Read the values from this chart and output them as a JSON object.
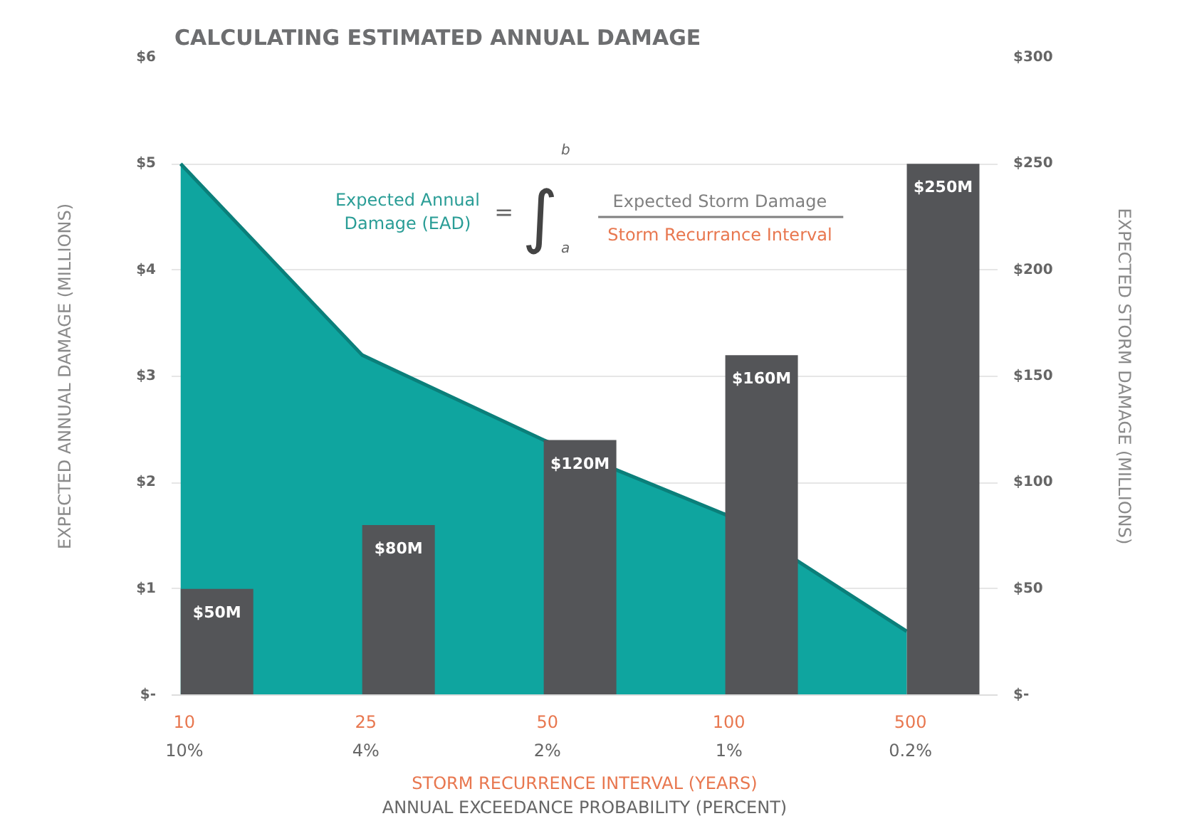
{
  "chart_data": {
    "type": "bar",
    "title": "CALCULATING ESTIMATED ANNUAL DAMAGE",
    "xlabel": "STORM RECURRENCE INTERVAL (YEARS)\nANNUAL EXCEEDANCE PROBABILITY (PERCENT)",
    "ylabel": "EXPECTED ANNUAL DAMAGE (MILLIONS)",
    "y2label": "EXPECTED STORM DAMAGE (MILLIONS)",
    "categories": [
      "10\n10%",
      "25\n4%",
      "50\n2%",
      "100\n1%",
      "500\n0.2%"
    ],
    "series": [
      {
        "type": "area",
        "color": "#0fa59f",
        "values": [
          5,
          3.2,
          2.4,
          1.7,
          0.6
        ]
      },
      {
        "axis": "y2",
        "color": "#545558",
        "values": [
          50,
          80,
          120,
          160,
          250
        ],
        "value_labels": [
          "$50M",
          "$80M",
          "$120M",
          "$160M",
          "$250M"
        ]
      }
    ],
    "ylim": [
      0,
      6
    ],
    "yticks": [
      {
        "value": 0,
        "label": "$-"
      },
      {
        "value": 1,
        "label": "$1"
      },
      {
        "value": 2,
        "label": "$2"
      },
      {
        "value": 3,
        "label": "$3"
      },
      {
        "value": 4,
        "label": "$4"
      },
      {
        "value": 5,
        "label": "$5"
      },
      {
        "value": 6,
        "label": "$6"
      }
    ],
    "y2lim": [
      0,
      300
    ],
    "y2ticks": [
      {
        "value": 0,
        "label": "$-"
      },
      {
        "value": 50,
        "label": "$50"
      },
      {
        "value": 100,
        "label": "$100"
      },
      {
        "value": 150,
        "label": "$150"
      },
      {
        "value": 200,
        "label": "$200"
      },
      {
        "value": 250,
        "label": "$250"
      },
      {
        "value": 300,
        "label": "$300"
      }
    ],
    "grid": "y",
    "annotations": [
      "Expected Annual\nDamage (EAD)",
      "=",
      "∫",
      "b",
      "a",
      "Expected Storm Damage",
      "Storm Recurrance Interval"
    ]
  }
}
